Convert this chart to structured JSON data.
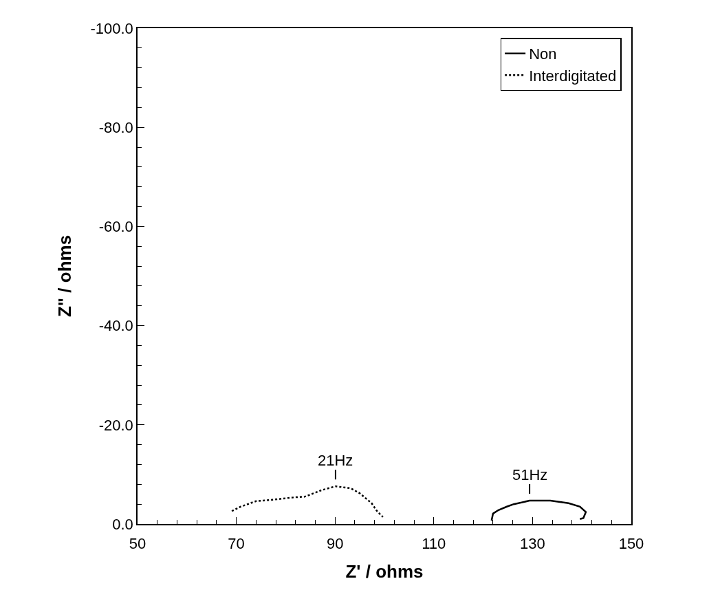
{
  "chart_data": {
    "type": "line",
    "xlabel": "Z' / ohms",
    "ylabel": "Z\" / ohms",
    "xlim": [
      50,
      150
    ],
    "xticks": [
      50,
      70,
      90,
      110,
      130,
      150
    ],
    "ylim": [
      0,
      -100
    ],
    "yticks": [
      {
        "value": 0,
        "label": "0.0"
      },
      {
        "value": -20,
        "label": "-20.0"
      },
      {
        "value": -40,
        "label": "-40.0"
      },
      {
        "value": -60,
        "label": "-60.0"
      },
      {
        "value": -80,
        "label": "-80.0"
      },
      {
        "value": -100,
        "label": "-100.0"
      }
    ],
    "grid": false,
    "legend": "top right",
    "marker": "none",
    "series": [
      {
        "name": "Non",
        "color": "#000000",
        "line_style": "solid",
        "x": [
          121.7,
          122,
          123.1,
          124.8,
          126.2,
          129.4,
          133.6,
          137.3,
          139.6,
          140.8,
          140.3,
          139.6
        ],
        "values": [
          -0.7,
          -2.1,
          -2.8,
          -3.5,
          -4.0,
          -4.7,
          -4.7,
          -4.2,
          -3.5,
          -2.4,
          -1.2,
          -1.0
        ]
      },
      {
        "name": "Interdigitated",
        "color": "#000000",
        "line_style": "dotted",
        "x": [
          69.1,
          70.9,
          74,
          77.4,
          82,
          83.8,
          85.2,
          87.2,
          90.1,
          93.2,
          95,
          97.4,
          98.5,
          99.7
        ],
        "values": [
          -2.6,
          -3.5,
          -4.6,
          -4.9,
          -5.4,
          -5.5,
          -6.0,
          -6.8,
          -7.6,
          -7.2,
          -6.2,
          -4.2,
          -2.6,
          -1.4
        ]
      }
    ],
    "annotations": [
      {
        "text": "21Hz",
        "x": 90.1,
        "y": -7.6
      },
      {
        "text": "51Hz",
        "x": 129.4,
        "y": -4.7
      }
    ]
  }
}
